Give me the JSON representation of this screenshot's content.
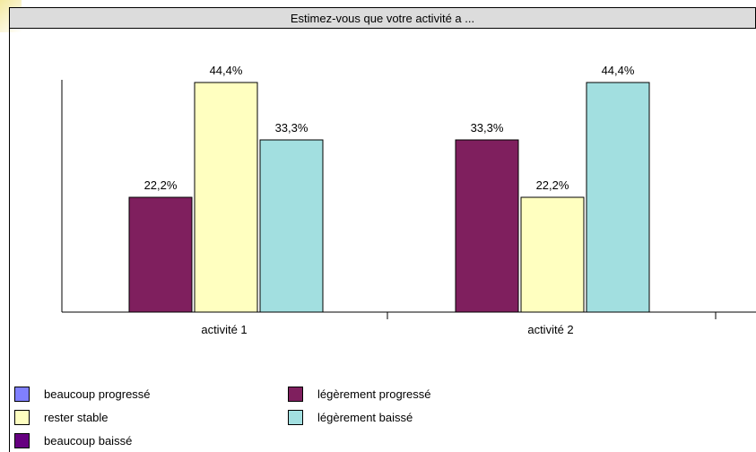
{
  "chart_data": {
    "type": "bar",
    "title": "Estimez-vous que votre activité a ...",
    "categories": [
      "activité 1",
      "activité 2"
    ],
    "ylim": [
      0,
      44.4
    ],
    "grid": false,
    "legend_position": "bottom",
    "value_format": "percent-comma",
    "series": [
      {
        "name": "beaucoup progressé",
        "color": "#8080ff",
        "values": [
          0,
          0
        ]
      },
      {
        "name": "légèrement progressé",
        "color": "#7f1f5e",
        "values": [
          22.2,
          33.3
        ]
      },
      {
        "name": "rester stable",
        "color": "#ffffc0",
        "values": [
          44.4,
          22.2
        ]
      },
      {
        "name": "légèrement baissé",
        "color": "#a2dfe0",
        "values": [
          33.3,
          44.4
        ]
      },
      {
        "name": "beaucoup baissé",
        "color": "#660080",
        "values": [
          0,
          0
        ]
      }
    ],
    "data_labels": [
      [
        "22,2%",
        "44,4%",
        "33,3%"
      ],
      [
        "33,3%",
        "22,2%",
        "44,4%"
      ]
    ]
  }
}
